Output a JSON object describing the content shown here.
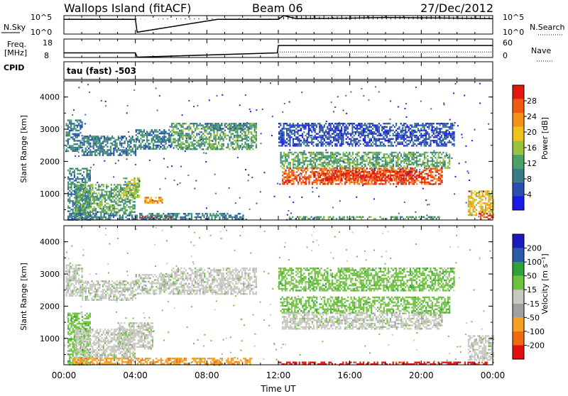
{
  "header": {
    "site": "Wallops Island (fitACF)",
    "beam": "Beam 06",
    "date": "27/Dec/2012"
  },
  "aux": {
    "nsky_label": "N.Sky",
    "nsearch_label": "N.Search",
    "freq_label_1": "Freq.",
    "freq_label_2": "[MHz]",
    "nave_label": "Nave",
    "cpid_label": "CPID",
    "cpid_text": "tau (fast) -503",
    "sky_ticks": [
      "10^5",
      "10^0"
    ],
    "freq_ticks": [
      "18",
      "8"
    ],
    "nave_ticks": [
      "60",
      "0"
    ]
  },
  "panels": {
    "x_ticks": [
      "00:00",
      "04:00",
      "08:00",
      "12:00",
      "16:00",
      "20:00",
      "00:00"
    ],
    "x_label": "Time UT",
    "y_label": "Slant Range [km]",
    "y_ticks": [
      "1000",
      "2000",
      "3000",
      "4000"
    ],
    "power_cb_label": "Power [dB]",
    "power_cb_ticks": [
      "4",
      "8",
      "12",
      "16",
      "20",
      "24",
      "28"
    ],
    "vel_cb_label": "Velocity [m s⁻¹]",
    "vel_cb_ticks": [
      "-200",
      "-100",
      "-50",
      "-15",
      "15",
      "50",
      "100",
      "200"
    ]
  },
  "colors": {
    "power_scale": [
      "#1a1ae6",
      "#2a4fb0",
      "#3a7c86",
      "#4aa265",
      "#9ac23a",
      "#f0c21a",
      "#f5901a",
      "#f05a10",
      "#e01810"
    ],
    "velocity_scale": [
      "#e01010",
      "#f06a10",
      "#f5a020",
      "#a0a0a0",
      "#c8c8c0",
      "#6cc23a",
      "#2fa03a",
      "#2a5aa8",
      "#1a1ac0"
    ]
  },
  "chart_data": [
    {
      "type": "line",
      "title": "N.Sky / N.Search",
      "x": [
        0,
        2,
        4,
        4.1,
        8.6,
        12,
        12.3,
        13,
        16,
        18,
        20,
        22,
        24
      ],
      "series": [
        {
          "name": "N.Sky",
          "values": [
            4.0,
            4.0,
            4.0,
            0.5,
            4.0,
            4.0,
            5.0,
            4.2,
            4.3,
            4.5,
            4.4,
            4.3,
            4.2
          ]
        }
      ],
      "xlim": [
        0,
        24
      ],
      "ylim": [
        0,
        5
      ]
    },
    {
      "type": "line",
      "x": [
        0,
        4,
        4.1,
        11.95,
        12,
        24
      ],
      "series": [
        {
          "name": "Freq.",
          "values": [
            10.5,
            10.5,
            8.2,
            10.5,
            14.5,
            14.5
          ]
        },
        {
          "name": "Nave",
          "values": [
            15,
            15,
            0,
            15,
            18,
            18
          ]
        }
      ],
      "xlim": [
        0,
        24
      ],
      "ylim": [
        8,
        18
      ]
    },
    {
      "type": "heatmap",
      "title": "Power",
      "xlabel": "Time UT",
      "ylabel": "Slant Range [km]",
      "xlim": [
        0,
        24
      ],
      "ylim": [
        180,
        4500
      ],
      "colorbar": {
        "label": "Power [dB]",
        "ticks": [
          4,
          8,
          12,
          16,
          20,
          24,
          28
        ]
      },
      "regions": [
        {
          "t": [
            0.1,
            1.0
          ],
          "r": [
            2300,
            3300
          ],
          "level": 2
        },
        {
          "t": [
            1.0,
            4.0
          ],
          "r": [
            2200,
            2800
          ],
          "level": 2
        },
        {
          "t": [
            4.0,
            6.0
          ],
          "r": [
            2400,
            3000
          ],
          "level": 2
        },
        {
          "t": [
            6.0,
            10.8
          ],
          "r": [
            2400,
            3200
          ],
          "level": 3
        },
        {
          "t": [
            8.0,
            10.4
          ],
          "r": [
            3000,
            3200
          ],
          "level": 2
        },
        {
          "t": [
            0.2,
            1.5
          ],
          "r": [
            200,
            1800
          ],
          "level": 2
        },
        {
          "t": [
            0.6,
            4.0
          ],
          "r": [
            400,
            1300
          ],
          "level": 3
        },
        {
          "t": [
            3.3,
            4.2
          ],
          "r": [
            900,
            1500
          ],
          "level": 4
        },
        {
          "t": [
            4.5,
            5.5
          ],
          "r": [
            700,
            900
          ],
          "level": 6
        },
        {
          "t": [
            4.2,
            6.0
          ],
          "r": [
            230,
            320
          ],
          "level": 8
        },
        {
          "t": [
            0.2,
            10.0
          ],
          "r": [
            200,
            400
          ],
          "level": 2
        },
        {
          "t": [
            12.0,
            21.8
          ],
          "r": [
            2500,
            3200
          ],
          "level": 1
        },
        {
          "t": [
            12.1,
            21.6
          ],
          "r": [
            1800,
            2300
          ],
          "level": 3
        },
        {
          "t": [
            12.2,
            21.2
          ],
          "r": [
            1300,
            1800
          ],
          "level": 7
        },
        {
          "t": [
            14.0,
            20.0
          ],
          "r": [
            1400,
            1700
          ],
          "level": 8
        },
        {
          "t": [
            12.5,
            21.0
          ],
          "r": [
            220,
            300
          ],
          "level": 3
        },
        {
          "t": [
            22.6,
            24.0
          ],
          "r": [
            350,
            1100
          ],
          "level": 5
        },
        {
          "t": [
            23.2,
            24.0
          ],
          "r": [
            230,
            450
          ],
          "level": 8
        }
      ]
    },
    {
      "type": "heatmap",
      "title": "Velocity",
      "xlabel": "Time UT",
      "ylabel": "Slant Range [km]",
      "xlim": [
        0,
        24
      ],
      "ylim": [
        180,
        4500
      ],
      "colorbar": {
        "label": "Velocity [m s⁻¹]",
        "ticks": [
          -200,
          -100,
          -50,
          -15,
          15,
          50,
          100,
          200
        ]
      },
      "regions": [
        {
          "t": [
            0.1,
            1.0
          ],
          "r": [
            2300,
            3300
          ],
          "level": 4
        },
        {
          "t": [
            1.0,
            4.0
          ],
          "r": [
            2200,
            2800
          ],
          "level": 4
        },
        {
          "t": [
            4.0,
            6.0
          ],
          "r": [
            2400,
            3000
          ],
          "level": 4
        },
        {
          "t": [
            6.0,
            10.8
          ],
          "r": [
            2400,
            3200
          ],
          "level": 4
        },
        {
          "t": [
            0.2,
            1.5
          ],
          "r": [
            200,
            1800
          ],
          "level": 5
        },
        {
          "t": [
            0.6,
            4.0
          ],
          "r": [
            400,
            1300
          ],
          "level": 4
        },
        {
          "t": [
            3.0,
            5.0
          ],
          "r": [
            700,
            1500
          ],
          "level": 4
        },
        {
          "t": [
            0.5,
            10.5
          ],
          "r": [
            200,
            400
          ],
          "level": 2
        },
        {
          "t": [
            12.0,
            21.8
          ],
          "r": [
            2500,
            3200
          ],
          "level": 5
        },
        {
          "t": [
            12.1,
            21.6
          ],
          "r": [
            1800,
            2300
          ],
          "level": 5
        },
        {
          "t": [
            12.2,
            21.2
          ],
          "r": [
            1300,
            1800
          ],
          "level": 4
        },
        {
          "t": [
            12.0,
            24.0
          ],
          "r": [
            200,
            280
          ],
          "level": 0
        },
        {
          "t": [
            22.6,
            24.0
          ],
          "r": [
            350,
            1100
          ],
          "level": 4
        }
      ]
    }
  ]
}
